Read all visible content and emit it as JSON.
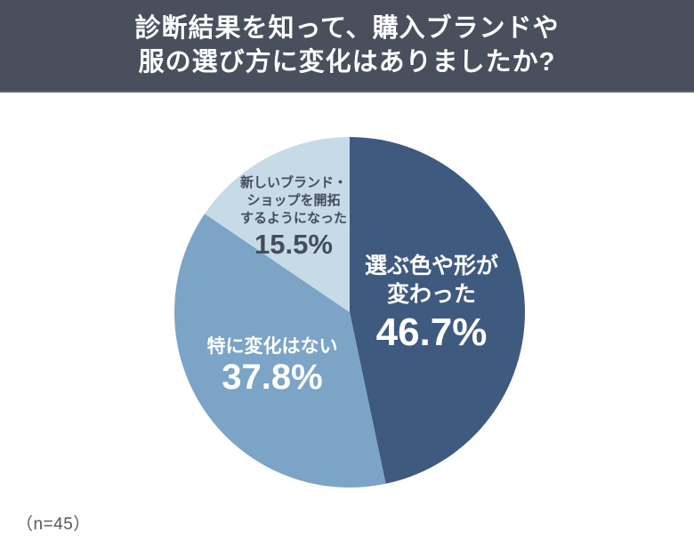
{
  "header": {
    "title_lines": [
      "診断結果を知って、購入ブランドや",
      "服の選び方に変化はありましたか?"
    ],
    "bg_color": "#494f5d",
    "text_color": "#ffffff"
  },
  "chart_data": {
    "type": "pie",
    "title": "診断結果を知って、購入ブランドや服の選び方に変化はありましたか?",
    "sample_size": 45,
    "sample_note": "（n=45）",
    "start_angle": "top",
    "direction": "clockwise",
    "legend_position": "labels-on-slices",
    "slices": [
      {
        "label": "選ぶ色や形が変わった",
        "label_lines": [
          "選ぶ色や形が",
          "変わった"
        ],
        "value_pct": 46.7,
        "display_pct": "46.7%",
        "color": "#3f5a7f",
        "label_color": "#ffffff"
      },
      {
        "label": "特に変化はない",
        "label_lines": [
          "特に変化はない"
        ],
        "value_pct": 37.8,
        "display_pct": "37.8%",
        "color": "#7ba4c6",
        "label_color": "#ffffff"
      },
      {
        "label": "新しいブランド・ショップを開拓するようになった",
        "label_lines": [
          "新しいブランド・",
          "ショップを開拓",
          "するようになった"
        ],
        "value_pct": 15.5,
        "display_pct": "15.5%",
        "color": "#c6dbe6",
        "label_color": "#454c5c"
      }
    ]
  },
  "footnote": {
    "text": "（n=45）",
    "color": "#54585f"
  }
}
